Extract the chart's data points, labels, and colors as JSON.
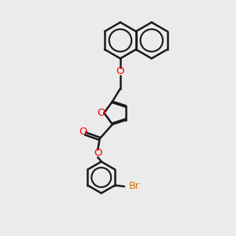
{
  "bg_color": "#ebebeb",
  "bond_color": "#1a1a1a",
  "oxygen_color": "#ff0000",
  "bromine_color": "#cc7700",
  "bond_width": 1.8,
  "figsize": [
    3.0,
    3.0
  ],
  "dpi": 100,
  "xlim": [
    0,
    10
  ],
  "ylim": [
    0,
    10
  ]
}
